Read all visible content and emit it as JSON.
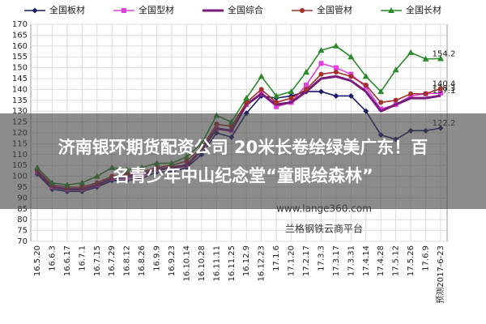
{
  "chart_data": {
    "type": "line",
    "categories": [
      "16.5.20",
      "16.6.3",
      "16.6.17",
      "16.7.1",
      "16.7.15",
      "16.7.29",
      "16.8.12",
      "16.8.26",
      "16.9.9",
      "16.9.23",
      "16.10.14",
      "16.10.28",
      "16.11.11",
      "16.11.25",
      "16.12.9",
      "16.12.23",
      "17.1.6",
      "17.1.20",
      "17.2.17",
      "17.3.3",
      "17.3.17",
      "17.3.31",
      "17.4.14",
      "17.4.28",
      "17.5.12",
      "17.5.26",
      "17.6.9",
      "预测2017-6-23"
    ],
    "series": [
      {
        "name": "全国板材",
        "color": "#1a1a6e",
        "marker": "diamond",
        "values": [
          101,
          94,
          93,
          93,
          95,
          98,
          98,
          99,
          102,
          102,
          104,
          110,
          120,
          118,
          129,
          137,
          136,
          137,
          139,
          139,
          137,
          137,
          130,
          119,
          117,
          121,
          121,
          122.2
        ]
      },
      {
        "name": "全国型材",
        "color": "#e040e0",
        "marker": "square",
        "values": [
          102,
          95,
          94,
          94,
          96,
          99,
          99,
          100,
          103,
          104,
          105,
          112,
          122,
          121,
          133,
          138,
          132,
          134,
          142,
          152,
          150,
          147,
          141,
          131,
          133,
          137,
          138,
          138.3
        ]
      },
      {
        "name": "全国综合",
        "color": "#7a1a7a",
        "marker": "none",
        "values": [
          102,
          95,
          94,
          94,
          96,
          99,
          100,
          101,
          103,
          104,
          105,
          112,
          122,
          121,
          133,
          138,
          133,
          134,
          139,
          145,
          146,
          144,
          139,
          130,
          133,
          136,
          136,
          137.1
        ]
      },
      {
        "name": "全国管材",
        "color": "#a0302a",
        "marker": "circle",
        "values": [
          103,
          96,
          95,
          95,
          97,
          100,
          101,
          102,
          104,
          105,
          107,
          113,
          124,
          123,
          134,
          140,
          134,
          136,
          140,
          147,
          148,
          146,
          142,
          134,
          135,
          138,
          138,
          140.4
        ]
      },
      {
        "name": "全国长材",
        "color": "#2a8a2a",
        "marker": "triangle",
        "values": [
          104,
          97,
          96,
          97,
          100,
          104,
          103,
          104,
          106,
          106,
          109,
          115,
          128,
          125,
          136,
          146,
          137,
          139,
          148,
          158,
          160,
          155,
          146,
          139,
          149,
          157,
          154,
          154.2
        ]
      }
    ],
    "ylim": [
      70,
      170
    ],
    "yticks": [
      70,
      75,
      80,
      85,
      90,
      95,
      100,
      105,
      110,
      115,
      120,
      125,
      130,
      135,
      140,
      145,
      150,
      155,
      160,
      165,
      170
    ],
    "grid": true,
    "legend": "top",
    "watermark": [
      "www.lange360.com",
      "兰格钢铁云商平台"
    ]
  },
  "banner": {
    "lines": [
      "济南银环期货配资公司 20米长卷绘绿美广东！百",
      "名青少年中山纪念堂“童眼绘森林”"
    ]
  }
}
